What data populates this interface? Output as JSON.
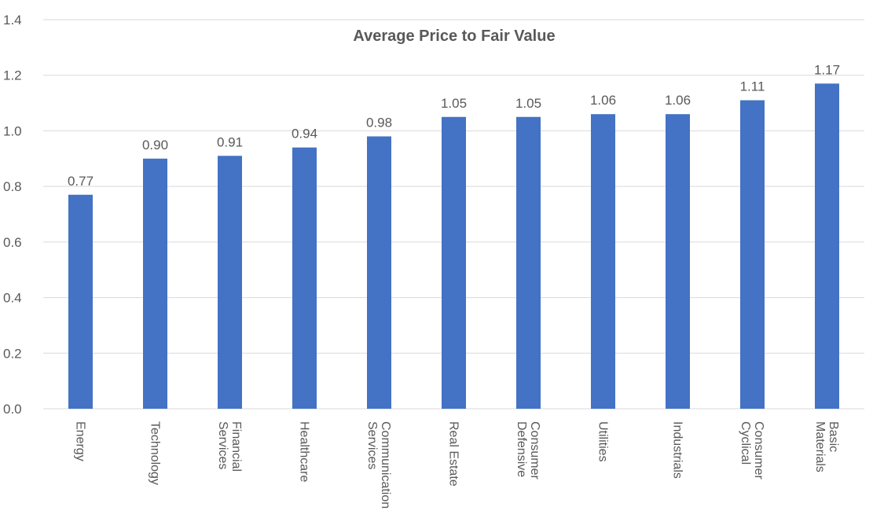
{
  "chart_data": {
    "type": "bar",
    "title": "Average Price to Fair Value",
    "xlabel": "",
    "ylabel": "",
    "ylim": [
      0,
      1.4
    ],
    "yticks": [
      "0.0",
      "0.2",
      "0.4",
      "0.6",
      "0.8",
      "1.0",
      "1.2",
      "1.4"
    ],
    "grid": true,
    "legend": "none",
    "bar_color": "#4472C4",
    "categories": [
      [
        "Energy"
      ],
      [
        "Technology"
      ],
      [
        "Financial",
        "Services"
      ],
      [
        "Healthcare"
      ],
      [
        "Communication",
        "Services"
      ],
      [
        "Real Estate"
      ],
      [
        "Consumer",
        "Defensive"
      ],
      [
        "Utilities"
      ],
      [
        "Industrials"
      ],
      [
        "Consumer",
        "Cyclical"
      ],
      [
        "Basic",
        "Materials"
      ]
    ],
    "values": [
      0.77,
      0.9,
      0.91,
      0.94,
      0.98,
      1.05,
      1.05,
      1.06,
      1.06,
      1.11,
      1.17
    ],
    "data_labels": [
      "0.77",
      "0.90",
      "0.91",
      "0.94",
      "0.98",
      "1.05",
      "1.05",
      "1.06",
      "1.06",
      "1.11",
      "1.17"
    ]
  }
}
